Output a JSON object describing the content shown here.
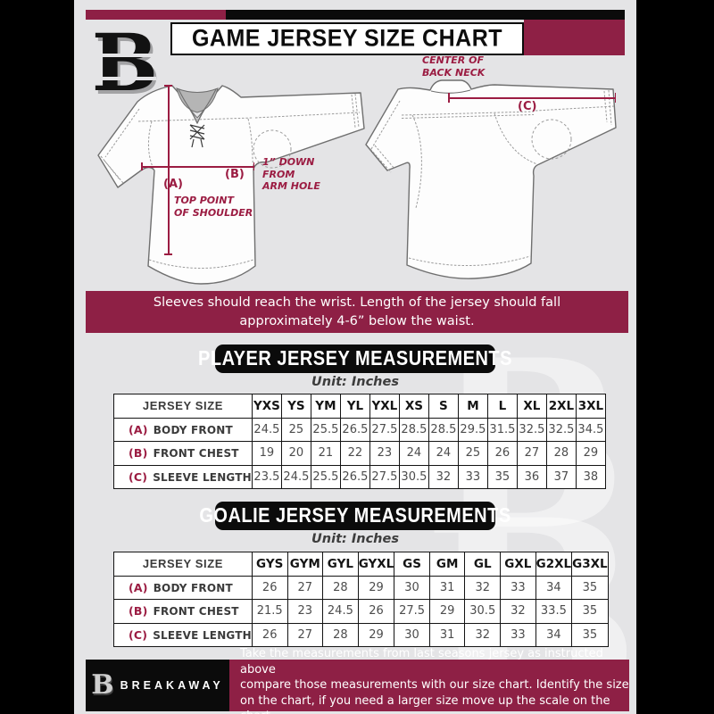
{
  "colors": {
    "maroon": "#8e2045",
    "accent": "#9b1c42",
    "page_bg": "#e4e4e6",
    "black": "#0b0b0b"
  },
  "header": {
    "title": "GAME JERSEY SIZE CHART",
    "logo_letter": "B"
  },
  "diagram": {
    "front": {
      "a_key": "(A)",
      "a_line1": "TOP POINT",
      "a_line2": "OF SHOULDER",
      "b_key": "(B)",
      "b_line1": "1” DOWN",
      "b_line2": "FROM",
      "b_line3": "ARM HOLE"
    },
    "back": {
      "c_key": "(C)",
      "c_line1": "CENTER OF",
      "c_line2": "BACK NECK"
    }
  },
  "notice": {
    "line1": "Sleeves should reach the wrist. Length of the jersey should fall",
    "line2": "approximately 4-6” below the waist."
  },
  "player_table": {
    "title": "PLAYER JERSEY MEASUREMENTS",
    "unit": "Unit: Inches",
    "size_header": "JERSEY SIZE",
    "sizes": [
      "YXS",
      "YS",
      "YM",
      "YL",
      "YXL",
      "XS",
      "S",
      "M",
      "L",
      "XL",
      "2XL",
      "3XL"
    ],
    "rows": [
      {
        "key": "(A)",
        "label": "BODY FRONT",
        "values": [
          "24.5",
          "25",
          "25.5",
          "26.5",
          "27.5",
          "28.5",
          "28.5",
          "29.5",
          "31.5",
          "32.5",
          "32.5",
          "34.5"
        ]
      },
      {
        "key": "(B)",
        "label": "FRONT CHEST",
        "values": [
          "19",
          "20",
          "21",
          "22",
          "23",
          "24",
          "24",
          "25",
          "26",
          "27",
          "28",
          "29"
        ]
      },
      {
        "key": "(C)",
        "label": "SLEEVE LENGTH",
        "values": [
          "23.5",
          "24.5",
          "25.5",
          "26.5",
          "27.5",
          "30.5",
          "32",
          "33",
          "35",
          "36",
          "37",
          "38"
        ]
      }
    ]
  },
  "goalie_table": {
    "title": "GOALIE JERSEY MEASUREMENTS",
    "unit": "Unit: Inches",
    "size_header": "JERSEY SIZE",
    "sizes": [
      "GYS",
      "GYM",
      "GYL",
      "GYXL",
      "GS",
      "GM",
      "GL",
      "GXL",
      "G2XL",
      "G3XL"
    ],
    "rows": [
      {
        "key": "(A)",
        "label": "BODY FRONT",
        "values": [
          "26",
          "27",
          "28",
          "29",
          "30",
          "31",
          "32",
          "33",
          "34",
          "35"
        ]
      },
      {
        "key": "(B)",
        "label": "FRONT CHEST",
        "values": [
          "21.5",
          "23",
          "24.5",
          "26",
          "27.5",
          "29",
          "30.5",
          "32",
          "33.5",
          "35"
        ]
      },
      {
        "key": "(C)",
        "label": "SLEEVE LENGTH",
        "values": [
          "26",
          "27",
          "28",
          "29",
          "30",
          "31",
          "32",
          "33",
          "34",
          "35"
        ]
      }
    ]
  },
  "footer": {
    "brand": "BREAKAWAY",
    "logo_letter": "B",
    "line1": "Take the measurements from last seasons jersey as instructed above",
    "line2": "compare those measurements  with our size chart. Identify the size",
    "line3": "on the chart, if you need a larger size move up the scale on the chart"
  }
}
